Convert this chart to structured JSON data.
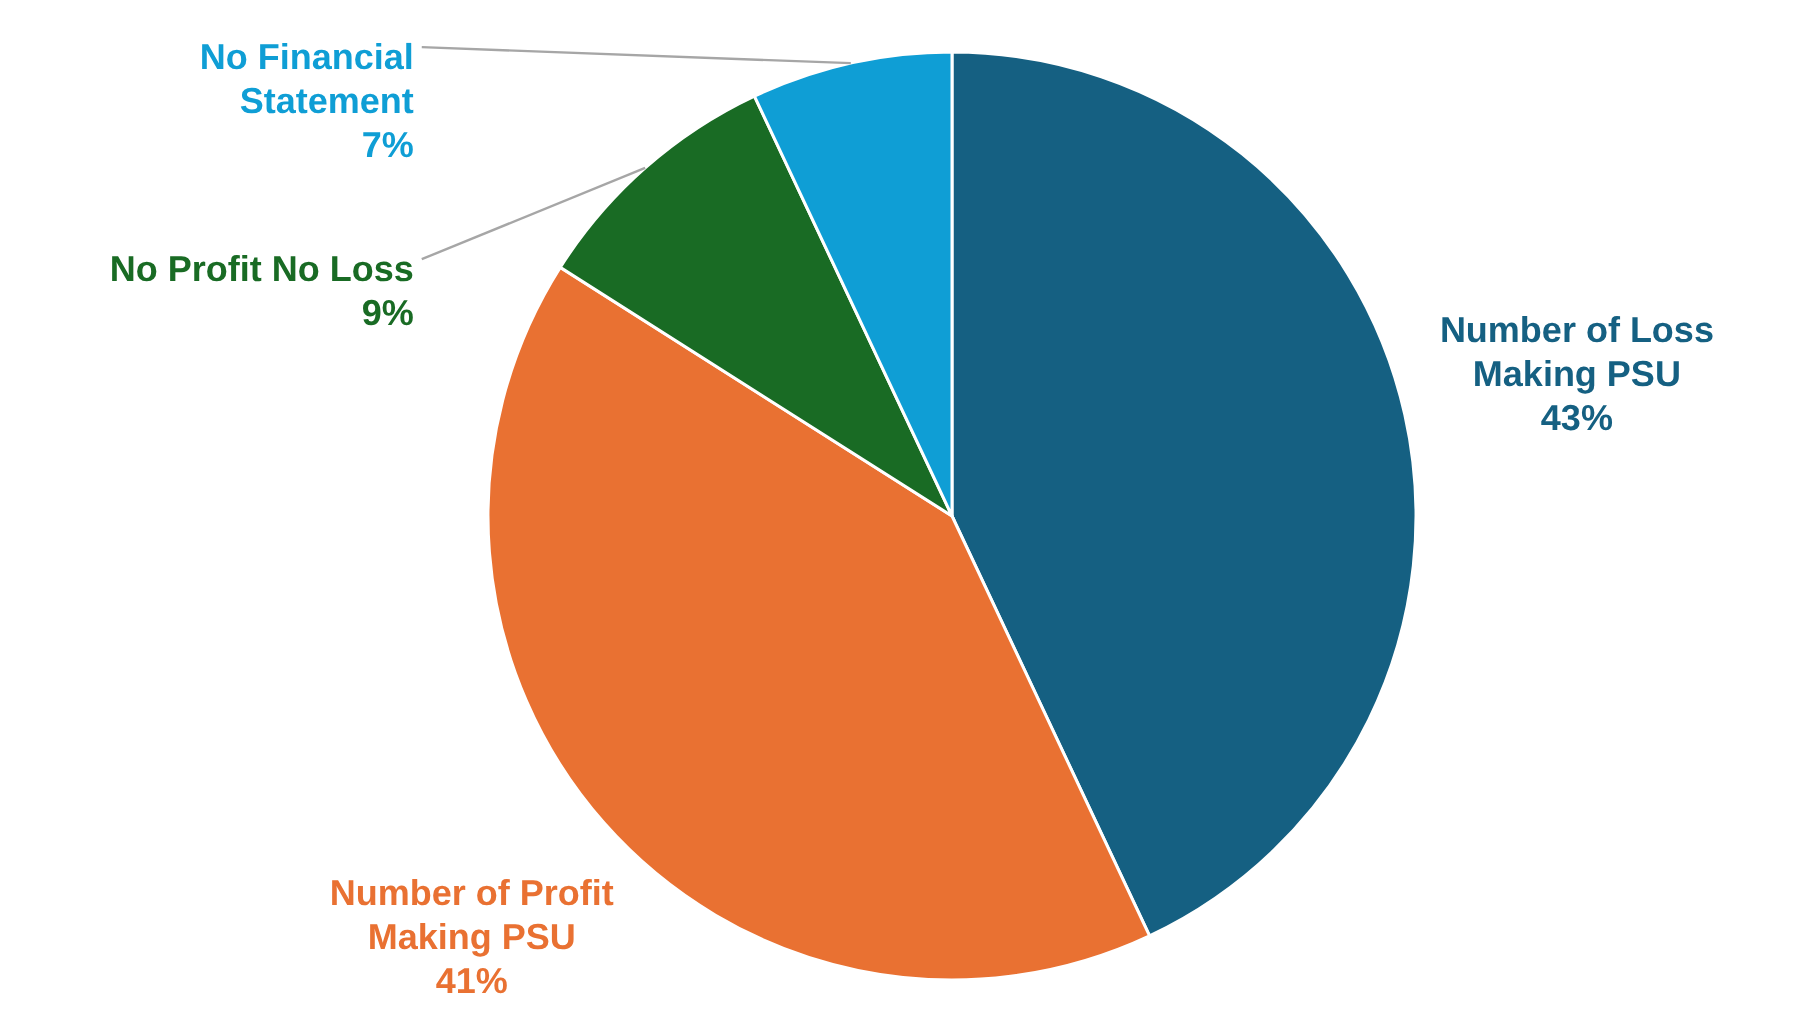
{
  "chart_data": {
    "type": "pie",
    "categories": [
      "Number of Loss Making PSU",
      "Number of Profit Making PSU",
      "No Profit No Loss",
      "No Financial Statement"
    ],
    "values": [
      43,
      41,
      9,
      7
    ],
    "colors": [
      "#156082",
      "#e97132",
      "#196b24",
      "#0f9ed5"
    ],
    "value_labels": [
      "43%",
      "41%",
      "9%",
      "7%"
    ]
  }
}
